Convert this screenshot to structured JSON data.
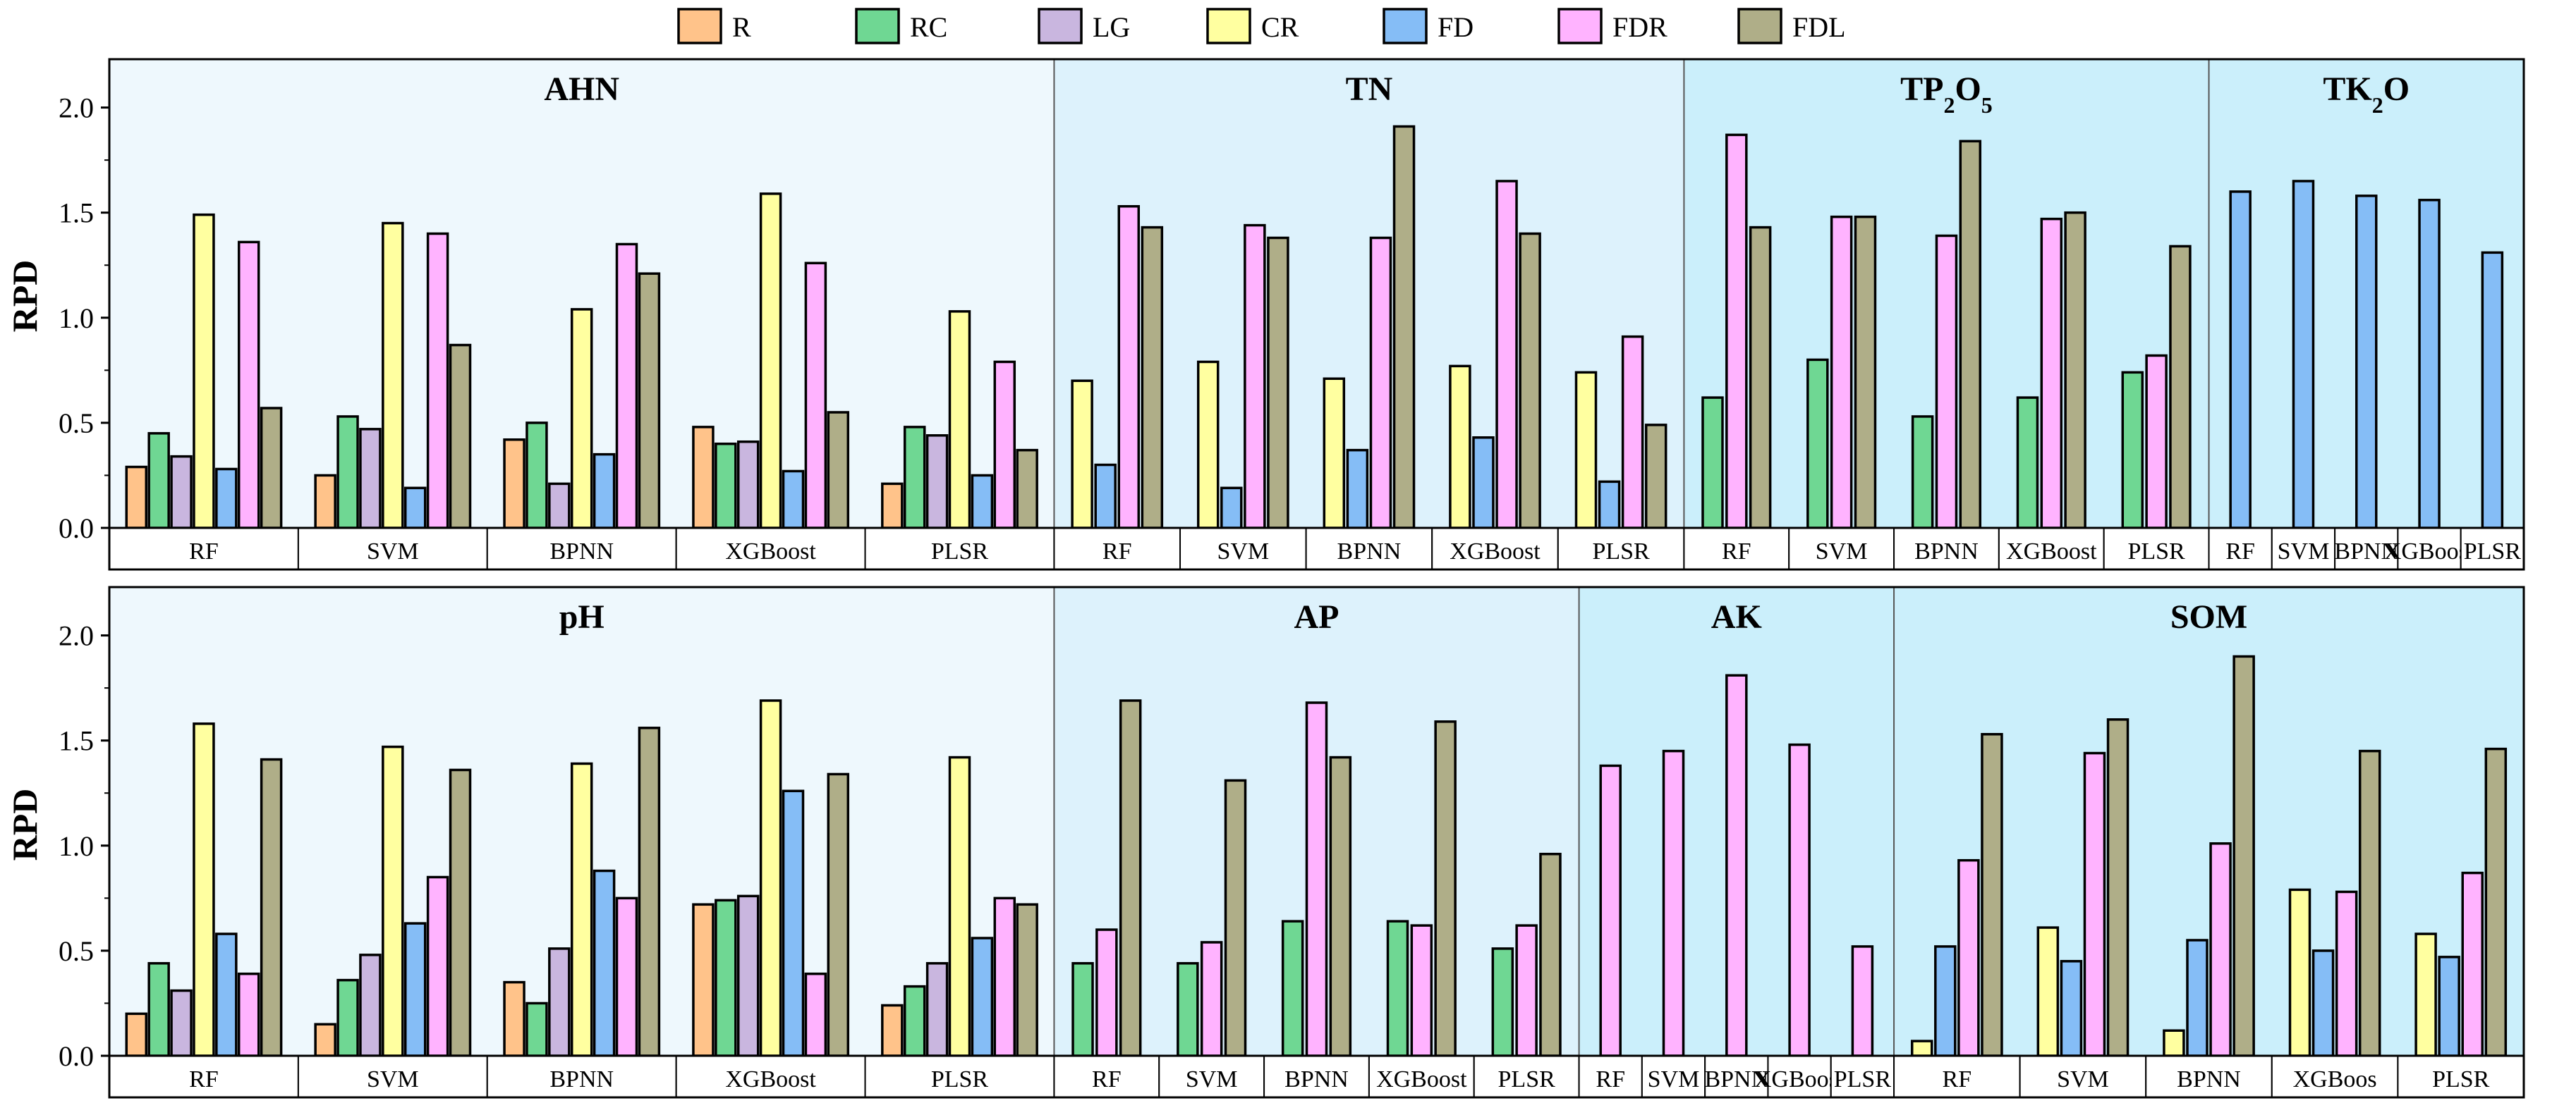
{
  "colors": {
    "R": "#FFC38A",
    "RC": "#6FD793",
    "LG": "#C9B6DF",
    "CR": "#FFFFA0",
    "FD": "#85BDF6",
    "FDR": "#FFB3FF",
    "FDL": "#AFAE88"
  },
  "panel_backgrounds": [
    "#EEF8FD",
    "#DDF2FC",
    "#CBEFFB"
  ],
  "legend": [
    "R",
    "RC",
    "LG",
    "CR",
    "FD",
    "FDR",
    "FDL"
  ],
  "chart_data": [
    {
      "type": "bar",
      "ylabel": "RPD",
      "ylim": [
        0,
        2.23
      ],
      "yticks": [
        "0.0",
        "0.5",
        "1.0",
        "1.5",
        "2.0"
      ],
      "groups": [
        {
          "title_parts": [
            {
              "t": "AHN"
            }
          ],
          "categories": [
            "RF",
            "SVM",
            "BPNN",
            "XGBoost",
            "PLSR"
          ],
          "series": [
            {
              "name": "R",
              "values": [
                0.29,
                0.25,
                0.42,
                0.48,
                0.21
              ]
            },
            {
              "name": "RC",
              "values": [
                0.45,
                0.53,
                0.5,
                0.4,
                0.48
              ]
            },
            {
              "name": "LG",
              "values": [
                0.34,
                0.47,
                0.21,
                0.41,
                0.44
              ]
            },
            {
              "name": "CR",
              "values": [
                1.49,
                1.45,
                1.04,
                1.59,
                1.03
              ]
            },
            {
              "name": "FD",
              "values": [
                0.28,
                0.19,
                0.35,
                0.27,
                0.25
              ]
            },
            {
              "name": "FDR",
              "values": [
                1.36,
                1.4,
                1.35,
                1.26,
                0.79
              ]
            },
            {
              "name": "FDL",
              "values": [
                0.57,
                0.87,
                1.21,
                0.55,
                0.37
              ]
            }
          ]
        },
        {
          "title_parts": [
            {
              "t": "TN"
            }
          ],
          "categories": [
            "RF",
            "SVM",
            "BPNN",
            "XGBoost",
            "PLSR"
          ],
          "series": [
            {
              "name": "CR",
              "values": [
                0.7,
                0.79,
                0.71,
                0.77,
                0.74
              ]
            },
            {
              "name": "FD",
              "values": [
                0.3,
                0.19,
                0.37,
                0.43,
                0.22
              ]
            },
            {
              "name": "FDR",
              "values": [
                1.53,
                1.44,
                1.38,
                1.65,
                0.91
              ]
            },
            {
              "name": "FDL",
              "values": [
                1.43,
                1.38,
                1.91,
                1.4,
                0.49
              ]
            }
          ]
        },
        {
          "title_parts": [
            {
              "t": "TP"
            },
            {
              "t": "2",
              "sub": true
            },
            {
              "t": "O"
            },
            {
              "t": "5",
              "sub": true
            }
          ],
          "categories": [
            "RF",
            "SVM",
            "BPNN",
            "XGBoost",
            "PLSR"
          ],
          "series": [
            {
              "name": "RC",
              "values": [
                0.62,
                0.8,
                0.53,
                0.62,
                0.74
              ]
            },
            {
              "name": "FDR",
              "values": [
                1.87,
                1.48,
                1.39,
                1.47,
                0.82
              ]
            },
            {
              "name": "FDL",
              "values": [
                1.43,
                1.48,
                1.84,
                1.5,
                1.34
              ]
            }
          ]
        },
        {
          "title_parts": [
            {
              "t": "TK"
            },
            {
              "t": "2",
              "sub": true
            },
            {
              "t": "O"
            }
          ],
          "categories": [
            "RF",
            "SVM",
            "BPNN",
            "XGBoost",
            "PLSR"
          ],
          "series": [
            {
              "name": "FD",
              "values": [
                1.6,
                1.65,
                1.58,
                1.56,
                1.31
              ]
            }
          ]
        }
      ]
    },
    {
      "type": "bar",
      "ylabel": "RPD",
      "ylim": [
        0,
        2.23
      ],
      "yticks": [
        "0.0",
        "0.5",
        "1.0",
        "1.5",
        "2.0"
      ],
      "groups": [
        {
          "title_parts": [
            {
              "t": "pH"
            }
          ],
          "categories": [
            "RF",
            "SVM",
            "BPNN",
            "XGBoost",
            "PLSR"
          ],
          "series": [
            {
              "name": "R",
              "values": [
                0.2,
                0.15,
                0.35,
                0.72,
                0.24
              ]
            },
            {
              "name": "RC",
              "values": [
                0.44,
                0.36,
                0.25,
                0.74,
                0.33
              ]
            },
            {
              "name": "LG",
              "values": [
                0.31,
                0.48,
                0.51,
                0.76,
                0.44
              ]
            },
            {
              "name": "CR",
              "values": [
                1.58,
                1.47,
                1.39,
                1.69,
                1.42
              ]
            },
            {
              "name": "FD",
              "values": [
                0.58,
                0.63,
                0.88,
                1.26,
                0.56
              ]
            },
            {
              "name": "FDR",
              "values": [
                0.39,
                0.85,
                0.75,
                0.39,
                0.75
              ]
            },
            {
              "name": "FDL",
              "values": [
                1.41,
                1.36,
                1.56,
                1.34,
                0.72
              ]
            }
          ]
        },
        {
          "title_parts": [
            {
              "t": "AP"
            }
          ],
          "categories": [
            "RF",
            "SVM",
            "BPNN",
            "XGBoost",
            "PLSR"
          ],
          "series": [
            {
              "name": "RC",
              "values": [
                0.44,
                0.44,
                0.64,
                0.64,
                0.51
              ]
            },
            {
              "name": "FDR",
              "values": [
                0.6,
                0.54,
                1.68,
                0.62,
                0.62
              ]
            },
            {
              "name": "FDL",
              "values": [
                1.69,
                1.31,
                1.42,
                1.59,
                0.96
              ]
            }
          ]
        },
        {
          "title_parts": [
            {
              "t": "AK"
            }
          ],
          "categories": [
            "RF",
            "SVM",
            "BPNN",
            "XGBoost",
            "PLSR"
          ],
          "series": [
            {
              "name": "FDR",
              "values": [
                1.38,
                1.45,
                1.81,
                1.48,
                0.52
              ]
            }
          ]
        },
        {
          "title_parts": [
            {
              "t": "SOM"
            }
          ],
          "categories": [
            "RF",
            "SVM",
            "BPNN",
            "XGBoos",
            "PLSR"
          ],
          "series": [
            {
              "name": "CR",
              "values": [
                0.07,
                0.61,
                0.12,
                0.79,
                0.58
              ]
            },
            {
              "name": "FD",
              "values": [
                0.52,
                0.45,
                0.55,
                0.5,
                0.47
              ]
            },
            {
              "name": "FDR",
              "values": [
                0.93,
                1.44,
                1.01,
                0.78,
                0.87
              ]
            },
            {
              "name": "FDL",
              "values": [
                1.53,
                1.6,
                1.9,
                1.45,
                1.46
              ]
            }
          ]
        }
      ]
    }
  ]
}
